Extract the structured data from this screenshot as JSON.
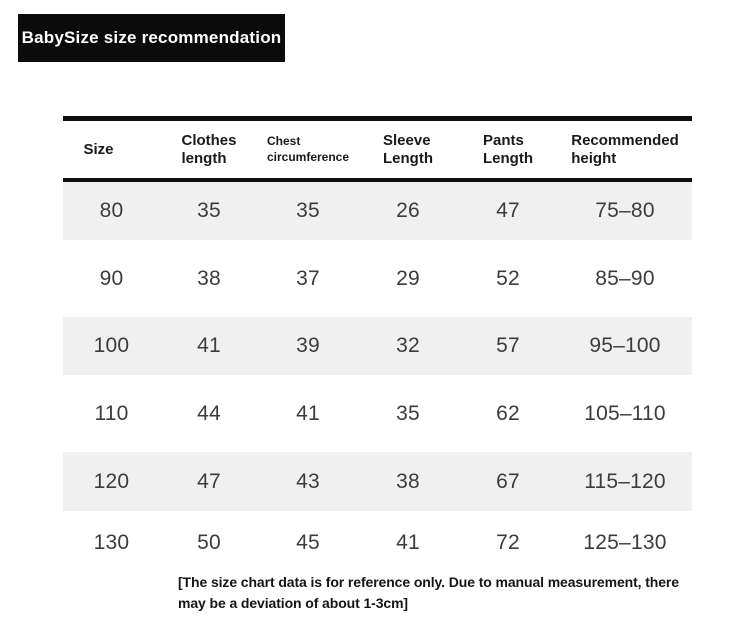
{
  "badge": {
    "label": "BabySize size recommendation",
    "bg_color": "#0b0b0b",
    "text_color": "#ffffff"
  },
  "table": {
    "headers": [
      {
        "text": "Size",
        "small": false
      },
      {
        "text": "Clothes\nlength",
        "small": false
      },
      {
        "text": "Chest\ncircumference",
        "small": true
      },
      {
        "text": "Sleeve\nLength",
        "small": false
      },
      {
        "text": "Pants\nLength",
        "small": false
      },
      {
        "text": "Recommended\nheight",
        "small": false
      }
    ],
    "rows": [
      [
        "80",
        "35",
        "35",
        "26",
        "47",
        "75–80"
      ],
      [
        "90",
        "38",
        "37",
        "29",
        "52",
        "85–90"
      ],
      [
        "100",
        "41",
        "39",
        "32",
        "57",
        "95–100"
      ],
      [
        "110",
        "44",
        "41",
        "35",
        "62",
        "105–110"
      ],
      [
        "120",
        "47",
        "43",
        "38",
        "67",
        "115–120"
      ],
      [
        "130",
        "50",
        "45",
        "41",
        "72",
        "125–130"
      ]
    ],
    "stripe_color": "#f0f0f0",
    "rule_color": "#101010"
  },
  "footer": {
    "note": "[The size chart data is for reference only. Due to manual measurement, there\nmay be a deviation of about 1-3cm]"
  },
  "chart_data": {
    "type": "table",
    "title": "BabySize size recommendation",
    "columns": [
      "Size",
      "Clothes length",
      "Chest circumference",
      "Sleeve Length",
      "Pants Length",
      "Recommended height"
    ],
    "rows": [
      [
        80,
        35,
        35,
        26,
        47,
        "75–80"
      ],
      [
        90,
        38,
        37,
        29,
        52,
        "85–90"
      ],
      [
        100,
        41,
        39,
        32,
        57,
        "95–100"
      ],
      [
        110,
        44,
        41,
        35,
        62,
        "105–110"
      ],
      [
        120,
        47,
        43,
        38,
        67,
        "115–120"
      ],
      [
        130,
        50,
        45,
        41,
        72,
        "125–130"
      ]
    ],
    "note": "[The size chart data is for reference only. Due to manual measurement, there may be a deviation of about 1-3cm]"
  }
}
